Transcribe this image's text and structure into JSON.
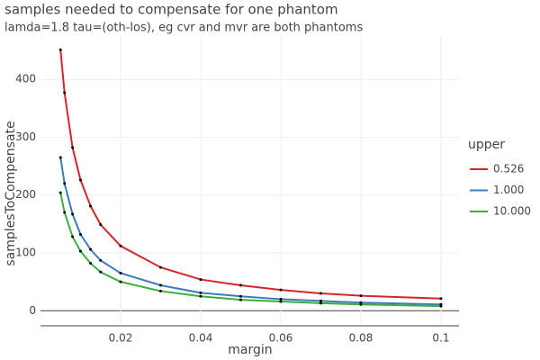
{
  "chart_data": {
    "type": "line",
    "title": "samples needed to compensate for one phantom",
    "subtitle": "lamda=1.8 tau=(oth-los), eg cvr and mvr are both phantoms",
    "x_label": "margin",
    "y_label": "samplesToCompensate",
    "x": [
      0.005,
      0.006,
      0.008,
      0.01,
      0.0125,
      0.015,
      0.02,
      0.03,
      0.04,
      0.05,
      0.06,
      0.07,
      0.08,
      0.1
    ],
    "series": [
      {
        "name": "0.526",
        "color": "#d62728",
        "values": [
          451,
          377,
          282,
          226,
          181,
          149,
          112,
          75,
          54,
          44,
          36,
          30,
          26,
          21
        ]
      },
      {
        "name": "1.000",
        "color": "#3a7dbf",
        "values": [
          265,
          220,
          167,
          132,
          106,
          87,
          65,
          44,
          31,
          25,
          20,
          17,
          14,
          11
        ]
      },
      {
        "name": "10.000",
        "color": "#3cae3c",
        "values": [
          204,
          170,
          128,
          103,
          82,
          67,
          50,
          34,
          25,
          19,
          16,
          13,
          11,
          8
        ]
      }
    ],
    "legend_title": "upper",
    "xlim": [
      0,
      0.1045
    ],
    "ylim": [
      -26,
      475
    ],
    "xticks": [
      0.02,
      0.04,
      0.06,
      0.08,
      0.1
    ],
    "yticks": [
      0,
      100,
      200,
      300,
      400
    ],
    "grid": true,
    "markers": true
  }
}
